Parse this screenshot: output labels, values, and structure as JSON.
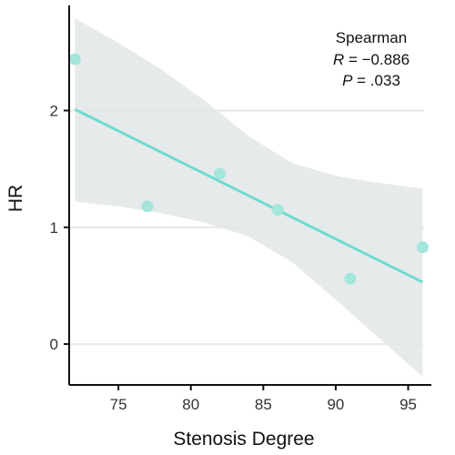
{
  "chart_data": {
    "type": "scatter",
    "xlabel": "Stenosis Degree",
    "ylabel": "HR",
    "xlim": [
      71.6,
      96.6
    ],
    "ylim": [
      -0.35,
      2.9
    ],
    "xticks": [
      75,
      80,
      85,
      90,
      95
    ],
    "yticks": [
      0,
      1,
      2
    ],
    "grid": "horizontal",
    "points": [
      {
        "x": 72,
        "y": 2.44
      },
      {
        "x": 77,
        "y": 1.18
      },
      {
        "x": 82,
        "y": 1.46
      },
      {
        "x": 86,
        "y": 1.15
      },
      {
        "x": 91,
        "y": 0.56
      },
      {
        "x": 96,
        "y": 0.83
      }
    ],
    "fit_line": [
      {
        "x": 72,
        "y": 2.01
      },
      {
        "x": 96,
        "y": 0.53
      }
    ],
    "confidence_band": {
      "upper": [
        {
          "x": 72,
          "y": 2.79
        },
        {
          "x": 75,
          "y": 2.58
        },
        {
          "x": 78,
          "y": 2.35
        },
        {
          "x": 81,
          "y": 2.08
        },
        {
          "x": 84,
          "y": 1.78
        },
        {
          "x": 87,
          "y": 1.55
        },
        {
          "x": 90,
          "y": 1.44
        },
        {
          "x": 93,
          "y": 1.38
        },
        {
          "x": 96,
          "y": 1.33
        }
      ],
      "lower": [
        {
          "x": 72,
          "y": 1.22
        },
        {
          "x": 75,
          "y": 1.18
        },
        {
          "x": 78,
          "y": 1.12
        },
        {
          "x": 81,
          "y": 1.04
        },
        {
          "x": 84,
          "y": 0.92
        },
        {
          "x": 87,
          "y": 0.7
        },
        {
          "x": 90,
          "y": 0.38
        },
        {
          "x": 93,
          "y": 0.05
        },
        {
          "x": 96,
          "y": -0.28
        }
      ]
    },
    "annotation": {
      "method": "Spearman",
      "r_label": "R",
      "r_value": " = −0.886",
      "p_label": "P",
      "p_value": " = .033"
    },
    "colors": {
      "points": "#a4e6dc",
      "line": "#6ddbd0",
      "band": "#e3e6e6",
      "grid": "#e5e9e9",
      "axis": "#111111"
    }
  }
}
